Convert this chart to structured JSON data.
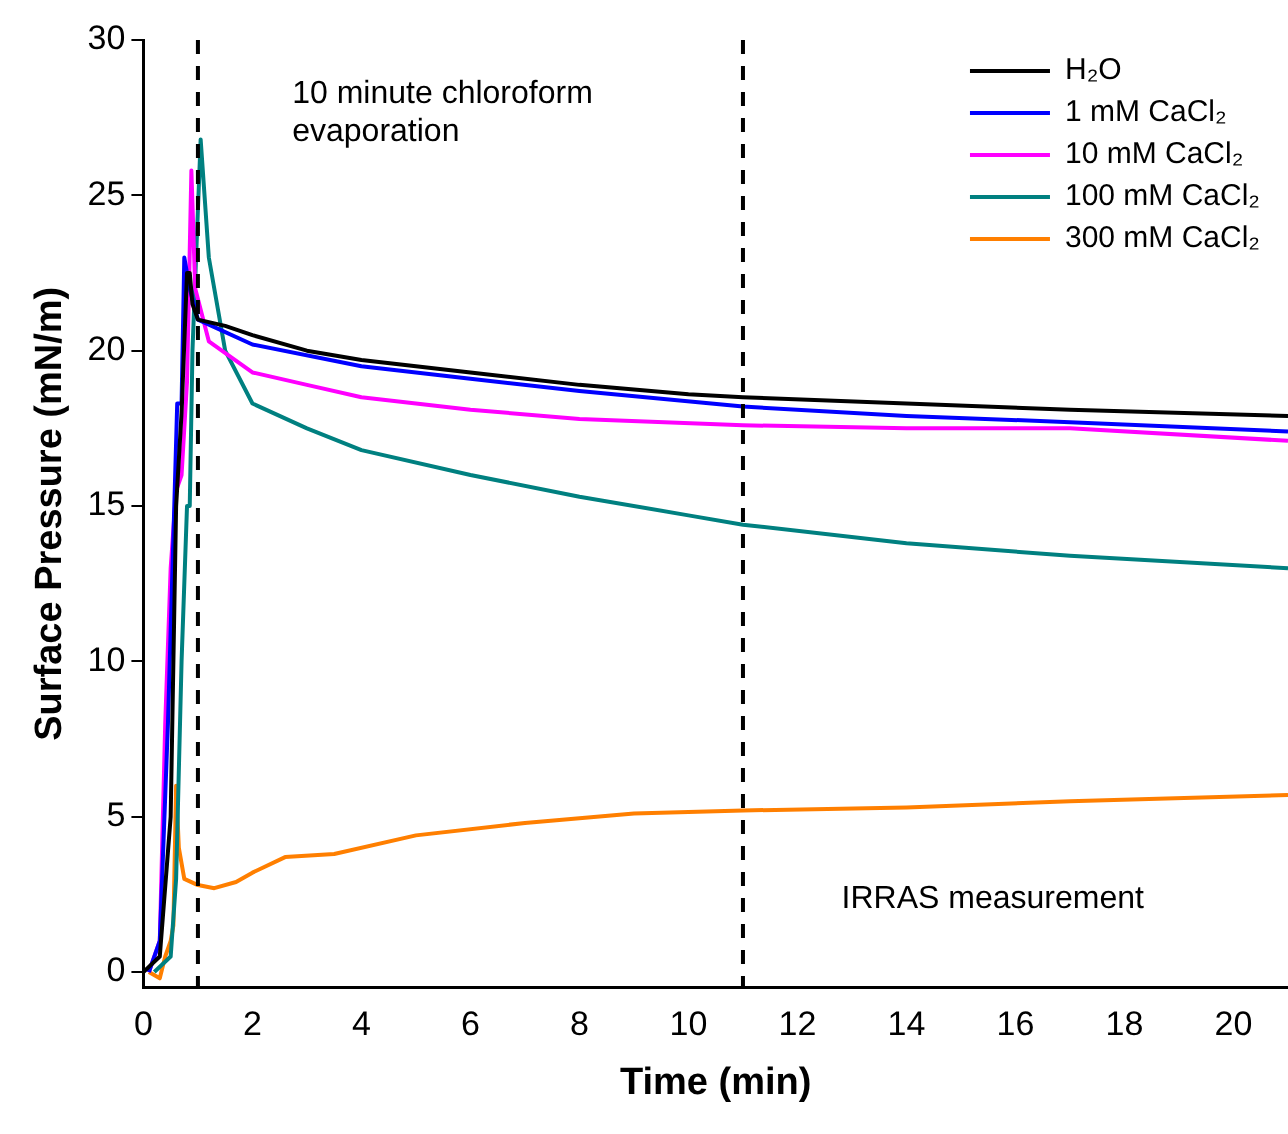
{
  "chart_data": {
    "type": "line",
    "xlabel": "Time (min)",
    "ylabel": "Surface Pressure (mN/m)",
    "xlim": [
      0,
      21
    ],
    "ylim": [
      -0.5,
      30
    ],
    "xticks": [
      0,
      2,
      4,
      6,
      8,
      10,
      12,
      14,
      16,
      18,
      20
    ],
    "yticks": [
      0,
      5,
      10,
      15,
      20,
      25,
      30
    ],
    "grid": false,
    "legend": "top right",
    "marker": "none",
    "line_style": "solid",
    "annotations": [
      "10 minute chloroform evaporation",
      "IRRAS measurement"
    ],
    "ref_lines": [
      {
        "axis": "x",
        "value": 1,
        "color": "#000000",
        "line_style": "dashed"
      },
      {
        "axis": "x",
        "value": 11,
        "color": "#000000",
        "line_style": "dashed"
      }
    ],
    "series": [
      {
        "name": "H₂O",
        "color": "#000000",
        "x": [
          0,
          0.3,
          0.5,
          0.6,
          0.7,
          0.8,
          0.85,
          0.9,
          1,
          1.5,
          2,
          3,
          4,
          6,
          8,
          10,
          11,
          14,
          17,
          21
        ],
        "values": [
          0,
          0.5,
          5,
          15,
          18,
          22.5,
          22.5,
          21.5,
          21,
          20.8,
          20.5,
          20,
          19.7,
          19.3,
          18.9,
          18.6,
          18.5,
          18.3,
          18.1,
          17.9
        ]
      },
      {
        "name": "1 mM CaCl₂",
        "color": "#0000ff",
        "x": [
          0.1,
          0.3,
          0.45,
          0.55,
          0.62,
          0.7,
          0.75,
          0.85,
          1,
          2,
          4,
          6,
          8,
          11,
          14,
          17,
          21
        ],
        "values": [
          0,
          1,
          8,
          14,
          18.3,
          18.3,
          23,
          22,
          21,
          20.2,
          19.5,
          19.1,
          18.7,
          18.2,
          17.9,
          17.7,
          17.4
        ]
      },
      {
        "name": "10 mM CaCl₂",
        "color": "#ff00ff",
        "x": [
          0.1,
          0.3,
          0.4,
          0.5,
          0.6,
          0.7,
          0.8,
          0.88,
          0.95,
          1.2,
          2,
          3,
          4,
          6,
          8,
          11,
          14,
          17,
          21
        ],
        "values": [
          0,
          1,
          8,
          13,
          15.5,
          16,
          19,
          25.8,
          22,
          20.3,
          19.3,
          18.9,
          18.5,
          18.1,
          17.8,
          17.6,
          17.5,
          17.5,
          17.1
        ]
      },
      {
        "name": "100 mM CaCl₂",
        "color": "#008080",
        "x": [
          0.2,
          0.5,
          0.6,
          0.7,
          0.8,
          0.85,
          0.9,
          1.05,
          1.2,
          1.5,
          2,
          3,
          4,
          6,
          8,
          10,
          11,
          14,
          17,
          21
        ],
        "values": [
          0,
          0.5,
          3,
          10,
          15,
          15,
          20,
          26.8,
          23,
          20,
          18.3,
          17.5,
          16.8,
          16,
          15.3,
          14.7,
          14.4,
          13.8,
          13.4,
          13
        ]
      },
      {
        "name": "300 mM CaCl₂",
        "color": "#ff7f00",
        "x": [
          0.1,
          0.3,
          0.4,
          0.5,
          0.55,
          0.6,
          0.65,
          0.75,
          1,
          1.3,
          1.7,
          2,
          2.6,
          3.5,
          5,
          7,
          9,
          11,
          14,
          17,
          21
        ],
        "values": [
          0,
          -0.2,
          0.5,
          1,
          1.5,
          6,
          4,
          3,
          2.8,
          2.7,
          2.9,
          3.2,
          3.7,
          3.8,
          4.4,
          4.8,
          5.1,
          5.2,
          5.3,
          5.5,
          5.7
        ]
      }
    ]
  }
}
